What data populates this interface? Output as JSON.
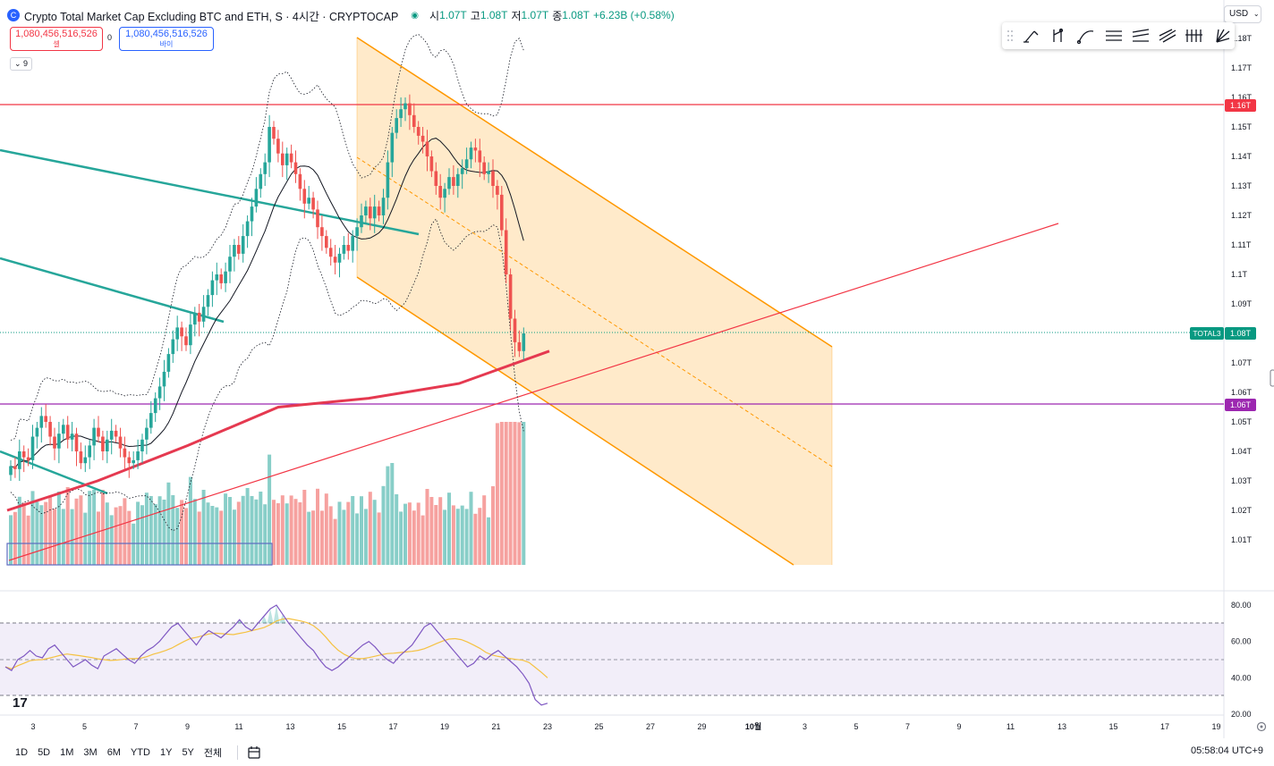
{
  "legend": {
    "title": "Crypto Total Market Cap Excluding BTC and ETH, S · 4시간 · CRYPTOCAP",
    "open_label": "시",
    "open": "1.07T",
    "high_label": "고",
    "high": "1.08T",
    "low_label": "저",
    "low": "1.07T",
    "close_label": "종",
    "close": "1.08T",
    "change": "+6.23B (+0.58%)"
  },
  "trade": {
    "sell_price": "1,080,456,516,526",
    "sell_label": "셀",
    "spread": "0",
    "buy_price": "1,080,456,516,526",
    "buy_label": "바이"
  },
  "indicator_toggle": "9",
  "currency": "USD",
  "drawing_tools": [
    "brush-icon",
    "trend-icon",
    "path-icon",
    "parallel-channel-icon",
    "regression-icon",
    "pitchfork-icon",
    "fib-icon",
    "gann-icon"
  ],
  "colors": {
    "up": "#26a69a",
    "down": "#ef5350",
    "channel": "#ff9800",
    "resistance": "#f23645",
    "support": "#9c27b0",
    "ma200": "#e53950",
    "rsi": "#7e57c2",
    "rsi_ma": "#f5c242"
  },
  "chart_data": {
    "type": "candlestick",
    "title": "Crypto Total Market Cap Excluding BTC and ETH",
    "interval": "4시간",
    "price_axis": {
      "ticks": [
        "1.01T",
        "1.02T",
        "1.03T",
        "1.04T",
        "1.05T",
        "1.06T",
        "1.07T",
        "1.08T",
        "1.09T",
        "1.1T",
        "1.11T",
        "1.12T",
        "1.13T",
        "1.14T",
        "1.15T",
        "1.16T",
        "1.17T",
        "1.18T"
      ],
      "range_T": [
        0.9965,
        1.1845
      ]
    },
    "time_axis": {
      "ticks": [
        "3",
        "5",
        "7",
        "9",
        "11",
        "13",
        "15",
        "17",
        "19",
        "21",
        "23",
        "25",
        "27",
        "29",
        "10월",
        "3",
        "5",
        "7",
        "9",
        "11",
        "13",
        "15",
        "17",
        "19"
      ]
    },
    "price_labels": [
      {
        "name": "resistance",
        "value_T": 1.158,
        "label": "1.16T"
      },
      {
        "name": "support",
        "value_T": 1.057,
        "label": "1.06T"
      },
      {
        "name": "last",
        "value_T": 1.08,
        "symbol": "TOTAL3",
        "label": "1.08T"
      }
    ],
    "close_series_T": [
      1.035,
      1.034,
      1.04,
      1.038,
      1.037,
      1.045,
      1.048,
      1.052,
      1.05,
      1.045,
      1.041,
      1.046,
      1.049,
      1.044,
      1.046,
      1.04,
      1.036,
      1.038,
      1.042,
      1.048,
      1.045,
      1.04,
      1.044,
      1.047,
      1.045,
      1.041,
      1.038,
      1.036,
      1.037,
      1.04,
      1.044,
      1.048,
      1.053,
      1.058,
      1.062,
      1.067,
      1.073,
      1.078,
      1.082,
      1.079,
      1.076,
      1.083,
      1.087,
      1.084,
      1.089,
      1.093,
      1.098,
      1.1,
      1.097,
      1.101,
      1.106,
      1.11,
      1.107,
      1.113,
      1.118,
      1.123,
      1.129,
      1.134,
      1.138,
      1.15,
      1.146,
      1.141,
      1.137,
      1.141,
      1.138,
      1.134,
      1.129,
      1.124,
      1.126,
      1.122,
      1.116,
      1.113,
      1.109,
      1.106,
      1.104,
      1.107,
      1.11,
      1.108,
      1.113,
      1.116,
      1.12,
      1.123,
      1.119,
      1.123,
      1.12,
      1.126,
      1.138,
      1.148,
      1.153,
      1.156,
      1.158,
      1.154,
      1.15,
      1.147,
      1.145,
      1.14,
      1.135,
      1.13,
      1.126,
      1.129,
      1.133,
      1.13,
      1.134,
      1.136,
      1.139,
      1.143,
      1.142,
      1.138,
      1.134,
      1.135,
      1.13,
      1.127,
      1.115,
      1.1,
      1.085,
      1.077,
      1.074,
      1.08
    ],
    "ma200_T": [
      1.02,
      1.03,
      1.042,
      1.055,
      1.058,
      1.063,
      1.074
    ],
    "volume": {
      "visible_range": "relative"
    },
    "rsi": {
      "axis_ticks": [
        "80.00",
        "60.00",
        "40.00",
        "20.00"
      ],
      "range": [
        18.5,
        81.5
      ],
      "bands": [
        70,
        50,
        30
      ],
      "values": [
        46,
        44,
        50,
        52,
        55,
        52,
        51,
        56,
        58,
        54,
        50,
        46,
        48,
        50,
        47,
        45,
        52,
        54,
        56,
        53,
        50,
        48,
        52,
        55,
        57,
        60,
        64,
        68,
        70,
        66,
        62,
        58,
        63,
        66,
        64,
        62,
        65,
        68,
        72,
        68,
        66,
        70,
        74,
        78,
        80,
        75,
        70,
        66,
        62,
        58,
        55,
        50,
        46,
        44,
        46,
        49,
        52,
        55,
        58,
        60,
        57,
        53,
        50,
        48,
        52,
        55,
        58,
        63,
        68,
        70,
        66,
        62,
        58,
        54,
        50,
        46,
        48,
        52,
        50,
        53,
        55,
        52,
        49,
        46,
        42,
        37,
        28,
        25,
        26
      ]
    },
    "annotations": [
      {
        "type": "parallel-channel",
        "color": "#ff9800"
      },
      {
        "type": "horizontal-line",
        "value_T": 1.158,
        "color": "#f23645"
      },
      {
        "type": "horizontal-line",
        "value_T": 1.057,
        "color": "#9c27b0"
      },
      {
        "type": "trend-line",
        "color": "#f23645"
      },
      {
        "type": "trend-line",
        "color": "#26a69a"
      },
      {
        "type": "bollinger-bands"
      }
    ]
  },
  "timeframes": [
    "1D",
    "5D",
    "1M",
    "3M",
    "6M",
    "YTD",
    "1Y",
    "5Y",
    "전체"
  ],
  "clock": "05:58:04 UTC+9"
}
